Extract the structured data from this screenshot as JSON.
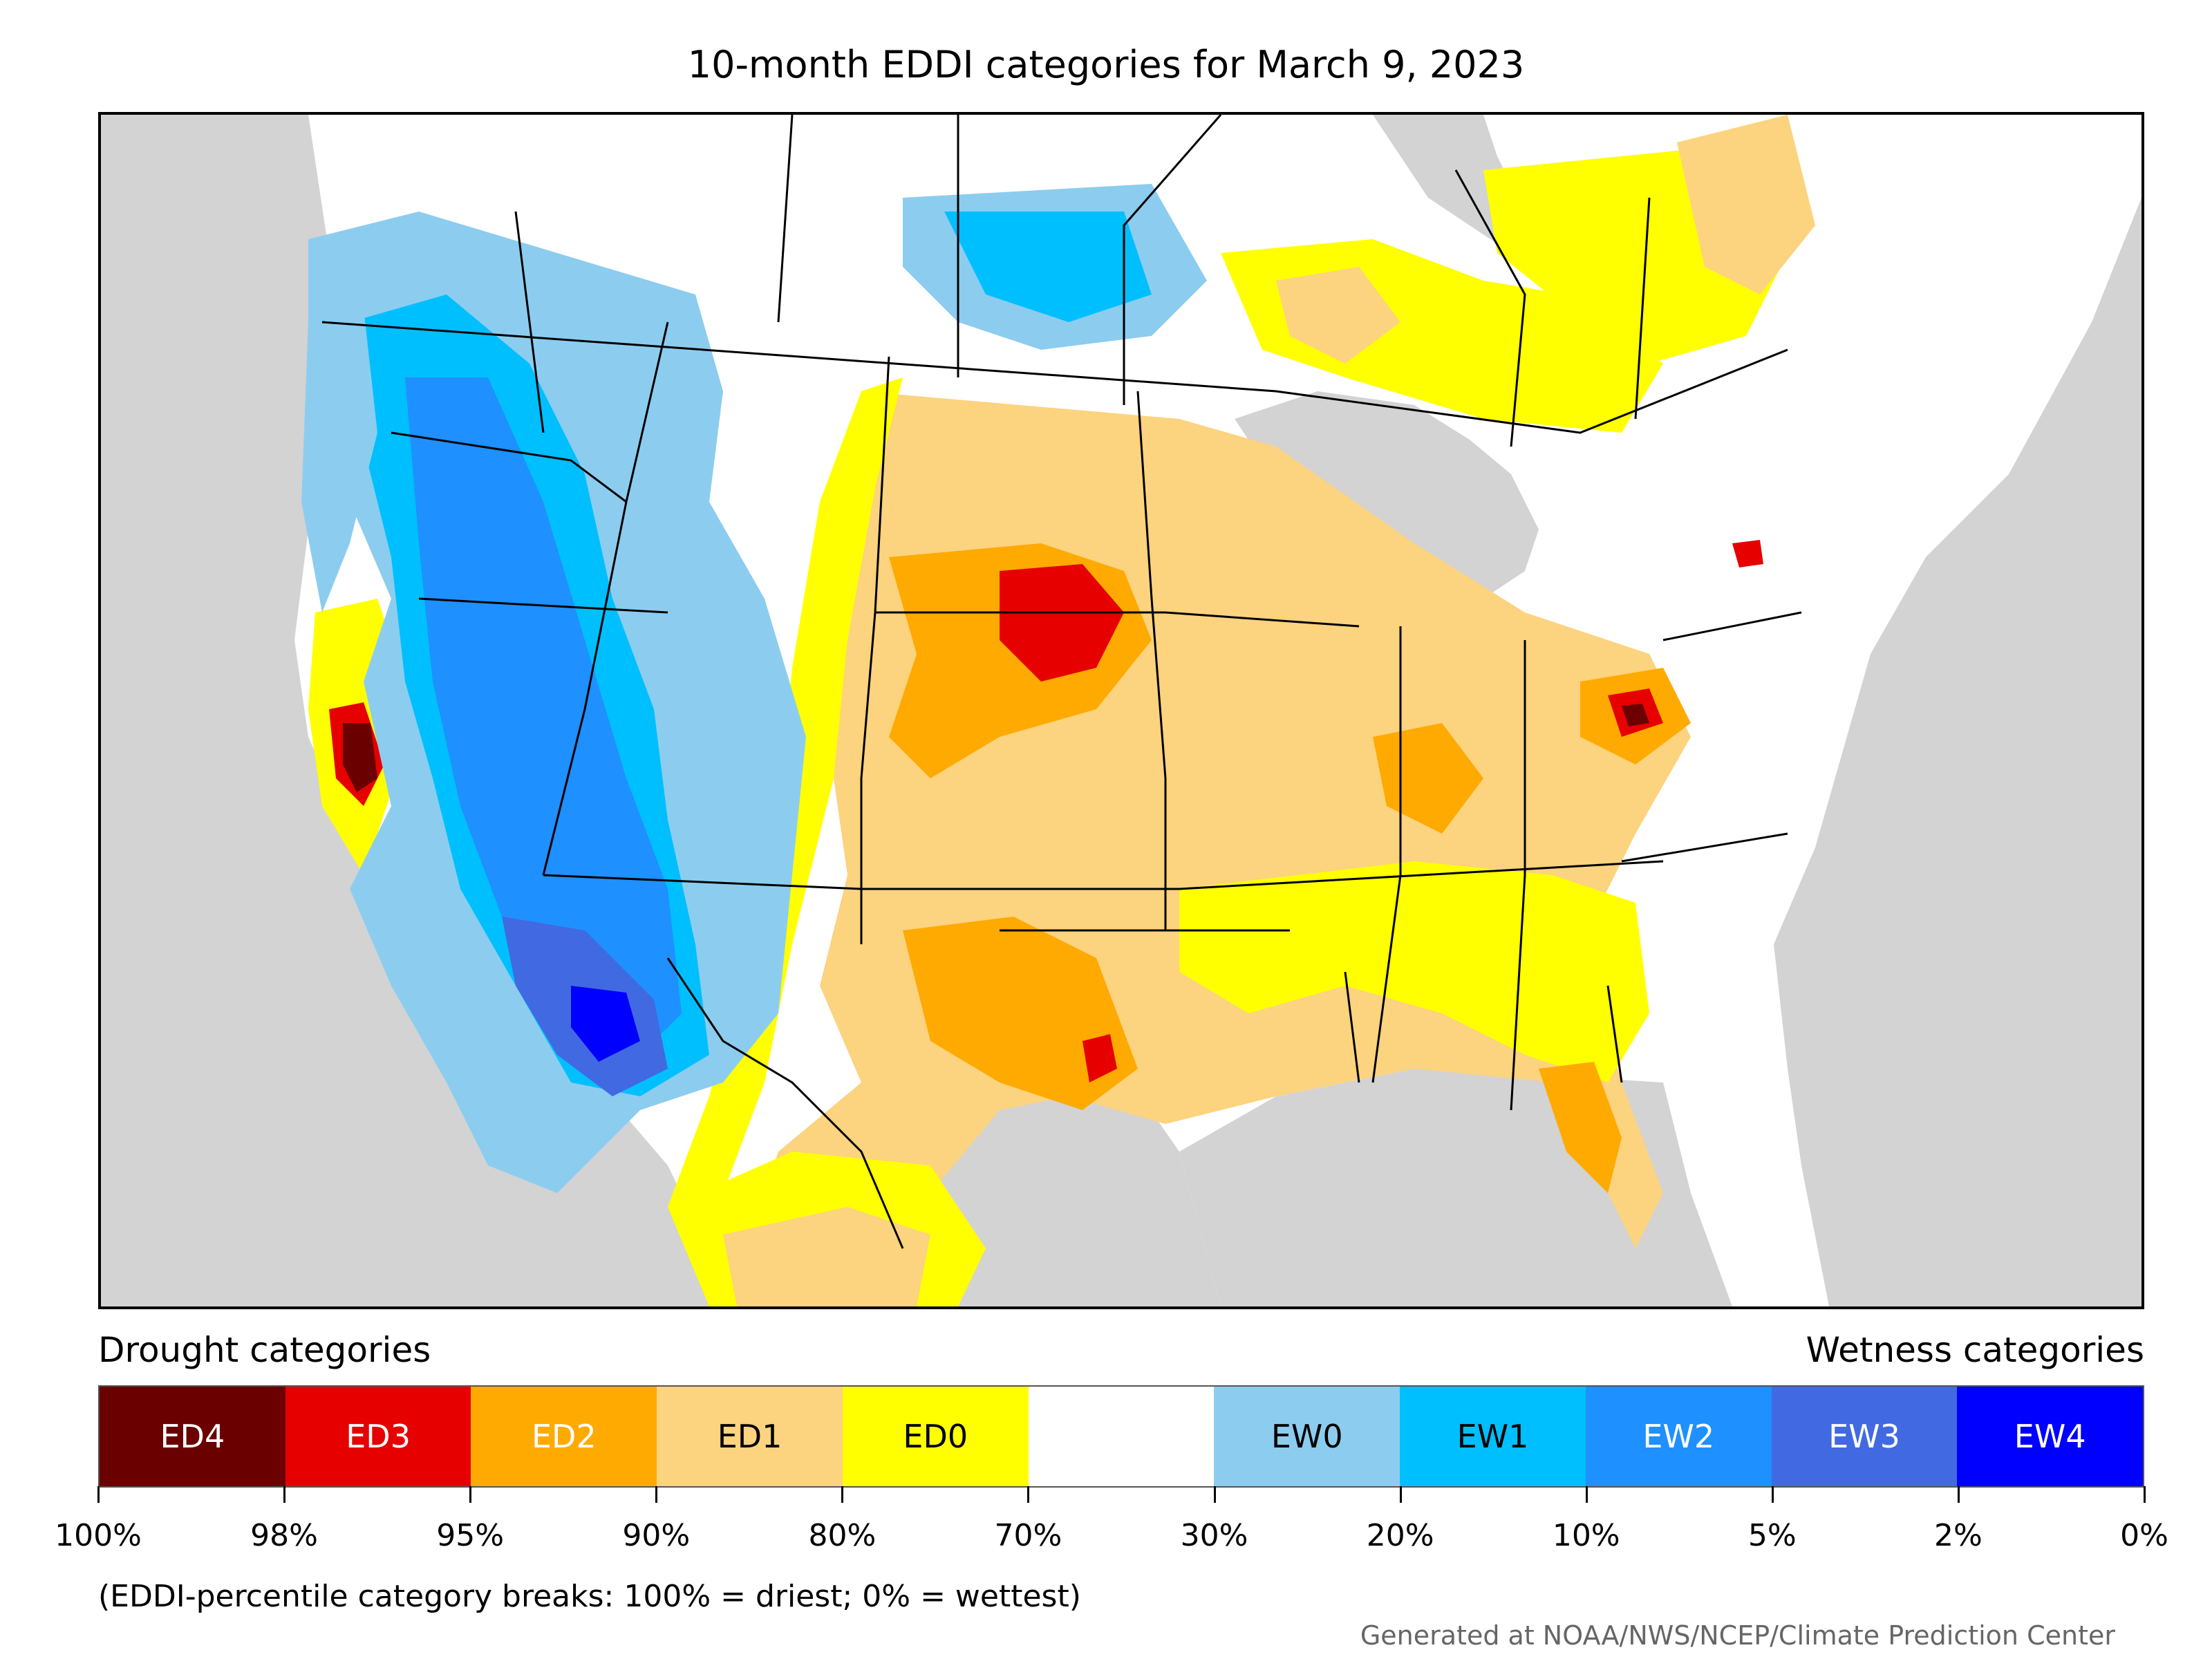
{
  "title": "10-month EDDI categories for March 9, 2023",
  "map": {
    "background_color": "#d3d3d3",
    "region": "contiguous United States with parts of Canada and Mexico"
  },
  "legend": {
    "drought_heading": "Drought categories",
    "wetness_heading": "Wetness categories",
    "categories": [
      {
        "label": "ED4",
        "color": "#6b0000",
        "text_color": "#ffffff"
      },
      {
        "label": "ED3",
        "color": "#e60000",
        "text_color": "#ffffff"
      },
      {
        "label": "ED2",
        "color": "#ffaa00",
        "text_color": "#ffffff"
      },
      {
        "label": "ED1",
        "color": "#fcd37f",
        "text_color": "#000000"
      },
      {
        "label": "ED0",
        "color": "#ffff00",
        "text_color": "#000000"
      },
      {
        "label": "",
        "color": "#ffffff",
        "text_color": "#000000"
      },
      {
        "label": "EW0",
        "color": "#8ccdef",
        "text_color": "#000000"
      },
      {
        "label": "EW1",
        "color": "#00bfff",
        "text_color": "#000000"
      },
      {
        "label": "EW2",
        "color": "#1e90ff",
        "text_color": "#ffffff"
      },
      {
        "label": "EW3",
        "color": "#4169e1",
        "text_color": "#ffffff"
      },
      {
        "label": "EW4",
        "color": "#0000ff",
        "text_color": "#ffffff"
      }
    ],
    "breaks": [
      "100%",
      "98%",
      "95%",
      "90%",
      "80%",
      "70%",
      "30%",
      "20%",
      "10%",
      "5%",
      "2%",
      "0%"
    ]
  },
  "note": "(EDDI-percentile category breaks: 100% = driest; 0% = wettest)",
  "credit": "Generated at NOAA/NWS/NCEP/Climate Prediction Center"
}
